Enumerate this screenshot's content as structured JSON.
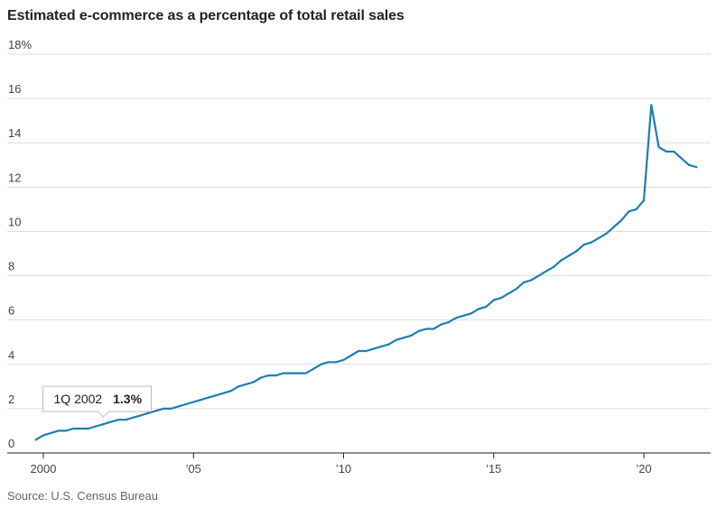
{
  "chart_title": "Estimated e-commerce as a percentage of total retail sales",
  "source": "Source: U.S. Census Bureau",
  "annotation": {
    "label": "1Q 2002",
    "value_text": "1.3%",
    "x": 2002.0,
    "y": 1.3
  },
  "colors": {
    "line": "#1c7fae",
    "grid": "#dcdcdc",
    "axis": "#222222",
    "tick_text": "#444444"
  },
  "chart_data": {
    "type": "line",
    "title": "Estimated e-commerce as a percentage of total retail sales",
    "xlabel": "",
    "ylabel": "",
    "xlim": [
      1999.5,
      2022.0
    ],
    "ylim": [
      0,
      18
    ],
    "grid": true,
    "y_ticks": [
      {
        "value": 0,
        "label": "0"
      },
      {
        "value": 2,
        "label": "2"
      },
      {
        "value": 4,
        "label": "4"
      },
      {
        "value": 6,
        "label": "6"
      },
      {
        "value": 8,
        "label": "8"
      },
      {
        "value": 10,
        "label": "10"
      },
      {
        "value": 12,
        "label": "12"
      },
      {
        "value": 14,
        "label": "14"
      },
      {
        "value": 16,
        "label": "16"
      },
      {
        "value": 18,
        "label": "18%"
      }
    ],
    "x_ticks": [
      {
        "value": 2000,
        "label": "2000"
      },
      {
        "value": 2005,
        "label": "’05"
      },
      {
        "value": 2010,
        "label": "’10"
      },
      {
        "value": 2015,
        "label": "’15"
      },
      {
        "value": 2020,
        "label": "’20"
      }
    ],
    "series": [
      {
        "x": [
          1999.75,
          2000.0,
          2000.25,
          2000.5,
          2000.75,
          2001.0,
          2001.25,
          2001.5,
          2001.75,
          2002.0,
          2002.25,
          2002.5,
          2002.75,
          2003.0,
          2003.25,
          2003.5,
          2003.75,
          2004.0,
          2004.25,
          2004.5,
          2004.75,
          2005.0,
          2005.25,
          2005.5,
          2005.75,
          2006.0,
          2006.25,
          2006.5,
          2006.75,
          2007.0,
          2007.25,
          2007.5,
          2007.75,
          2008.0,
          2008.25,
          2008.5,
          2008.75,
          2009.0,
          2009.25,
          2009.5,
          2009.75,
          2010.0,
          2010.25,
          2010.5,
          2010.75,
          2011.0,
          2011.25,
          2011.5,
          2011.75,
          2012.0,
          2012.25,
          2012.5,
          2012.75,
          2013.0,
          2013.25,
          2013.5,
          2013.75,
          2014.0,
          2014.25,
          2014.5,
          2014.75,
          2015.0,
          2015.25,
          2015.5,
          2015.75,
          2016.0,
          2016.25,
          2016.5,
          2016.75,
          2017.0,
          2017.25,
          2017.5,
          2017.75,
          2018.0,
          2018.25,
          2018.5,
          2018.75,
          2019.0,
          2019.25,
          2019.5,
          2019.75,
          2020.0,
          2020.25,
          2020.5,
          2020.75,
          2021.0,
          2021.25,
          2021.5,
          2021.75
        ],
        "values": [
          0.6,
          0.8,
          0.9,
          1.0,
          1.0,
          1.1,
          1.1,
          1.1,
          1.2,
          1.3,
          1.4,
          1.5,
          1.5,
          1.6,
          1.7,
          1.8,
          1.9,
          2.0,
          2.0,
          2.1,
          2.2,
          2.3,
          2.4,
          2.5,
          2.6,
          2.7,
          2.8,
          3.0,
          3.1,
          3.2,
          3.4,
          3.5,
          3.5,
          3.6,
          3.6,
          3.6,
          3.6,
          3.8,
          4.0,
          4.1,
          4.1,
          4.2,
          4.4,
          4.6,
          4.6,
          4.7,
          4.8,
          4.9,
          5.1,
          5.2,
          5.3,
          5.5,
          5.6,
          5.6,
          5.8,
          5.9,
          6.1,
          6.2,
          6.3,
          6.5,
          6.6,
          6.9,
          7.0,
          7.2,
          7.4,
          7.7,
          7.8,
          8.0,
          8.2,
          8.4,
          8.7,
          8.9,
          9.1,
          9.4,
          9.5,
          9.7,
          9.9,
          10.2,
          10.5,
          10.9,
          11.0,
          11.4,
          15.7,
          13.8,
          13.6,
          13.6,
          13.3,
          13.0,
          12.9
        ]
      }
    ]
  }
}
